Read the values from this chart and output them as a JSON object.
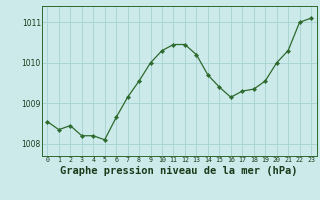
{
  "x": [
    0,
    1,
    2,
    3,
    4,
    5,
    6,
    7,
    8,
    9,
    10,
    11,
    12,
    13,
    14,
    15,
    16,
    17,
    18,
    19,
    20,
    21,
    22,
    23
  ],
  "y": [
    1008.55,
    1008.35,
    1008.45,
    1008.2,
    1008.2,
    1008.1,
    1008.65,
    1009.15,
    1009.55,
    1010.0,
    1010.3,
    1010.45,
    1010.45,
    1010.2,
    1009.7,
    1009.4,
    1009.15,
    1009.3,
    1009.35,
    1009.55,
    1010.0,
    1010.3,
    1011.0,
    1011.1
  ],
  "line_color": "#2d6a2d",
  "marker": "D",
  "marker_size": 2.2,
  "bg_color": "#cceaea",
  "grid_color": "#aad4d4",
  "xlabel": "Graphe pression niveau de la mer (hPa)",
  "xlabel_fontsize": 7.5,
  "xlabel_color": "#1a3a1a",
  "tick_color": "#1a3a1a",
  "yticks": [
    1008,
    1009,
    1010,
    1011
  ],
  "xtick_labels": [
    "0",
    "1",
    "2",
    "3",
    "4",
    "5",
    "6",
    "7",
    "8",
    "9",
    "10",
    "11",
    "12",
    "13",
    "14",
    "15",
    "16",
    "17",
    "18",
    "19",
    "20",
    "21",
    "22",
    "23"
  ],
  "ylim": [
    1007.7,
    1011.4
  ],
  "xlim": [
    -0.5,
    23.5
  ]
}
